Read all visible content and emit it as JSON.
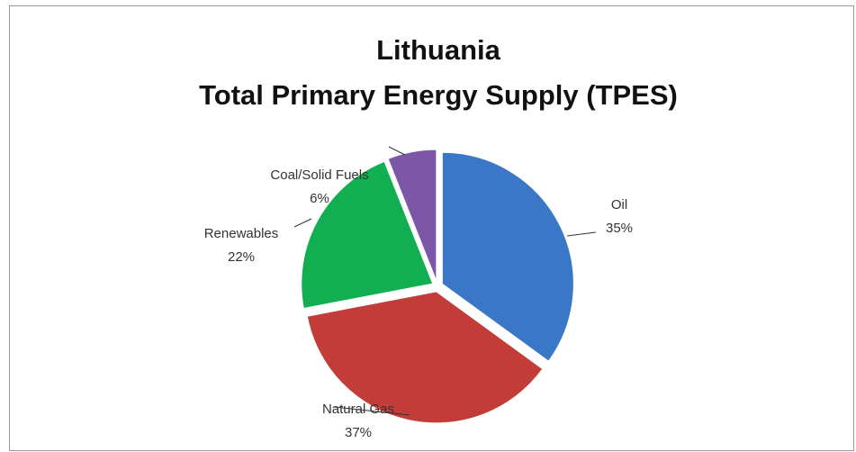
{
  "chart_data": {
    "type": "pie",
    "title": [
      "Lithuania",
      "Total Primary Energy Supply (TPES)"
    ],
    "categories": [
      "Oil",
      "Natural Gas",
      "Renewables",
      "Coal/Solid Fuels"
    ],
    "values": [
      35,
      37,
      22,
      6
    ],
    "value_labels": [
      "35%",
      "37%",
      "22%",
      "6%"
    ],
    "colors": [
      "#3a77c6",
      "#c23d38",
      "#12ae52",
      "#7d56a8"
    ]
  }
}
